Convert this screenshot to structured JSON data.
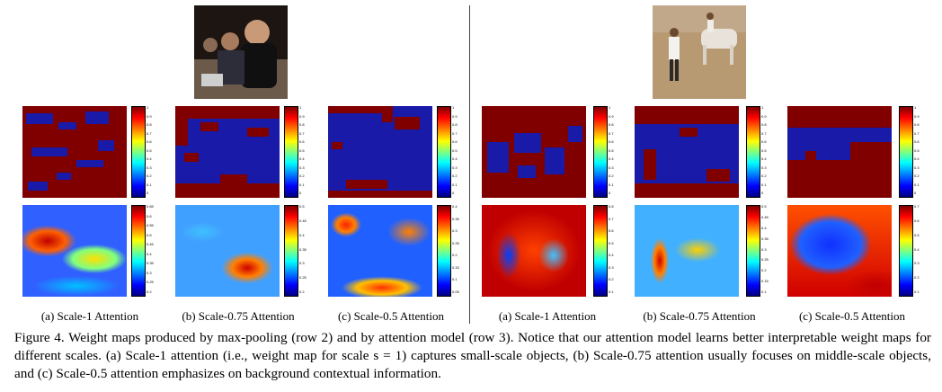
{
  "figure": {
    "number_label": "Figure 4.",
    "caption_text": "Weight maps produced by max-pooling (row 2) and by attention model (row 3). Notice that our attention model learns better interpretable weight maps for different scales. (a) Scale-1 attention (i.e., weight map for scale s = 1) captures small-scale objects, (b) Scale-0.75 attention usually focuses on middle-scale objects, and (c) Scale-0.5 attention emphasizes on background contextual information."
  },
  "panels": {
    "left": {
      "photo_description_icon": "people-photo",
      "sublabels": [
        "(a) Scale-1 Attention",
        "(b) Scale-0.75 Attention",
        "(c) Scale-0.5 Attention"
      ],
      "row2_ticks": [
        [
          "1",
          "0.9",
          "0.8",
          "0.7",
          "0.6",
          "0.5",
          "0.4",
          "0.3",
          "0.2",
          "0.1",
          "0"
        ],
        [
          "1",
          "0.9",
          "0.8",
          "0.7",
          "0.6",
          "0.5",
          "0.4",
          "0.3",
          "0.2",
          "0.1",
          "0"
        ],
        [
          "1",
          "0.9",
          "0.8",
          "0.7",
          "0.6",
          "0.5",
          "0.4",
          "0.3",
          "0.2",
          "0.1",
          "0"
        ]
      ],
      "row3_ticks": [
        [
          "0.65",
          "0.6",
          "0.55",
          "0.5",
          "0.45",
          "0.4",
          "0.35",
          "0.3",
          "0.25",
          "0.2"
        ],
        [
          "0.5",
          "0.45",
          "0.4",
          "0.35",
          "0.3",
          "0.25",
          "0.2"
        ],
        [
          "0.4",
          "0.35",
          "0.3",
          "0.25",
          "0.2",
          "0.15",
          "0.1",
          "0.05"
        ]
      ]
    },
    "right": {
      "photo_description_icon": "horse-beach-photo",
      "sublabels": [
        "(a) Scale-1 Attention",
        "(b) Scale-0.75 Attention",
        "(c) Scale-0.5 Attention"
      ],
      "row2_ticks": [
        [
          "1",
          "0.9",
          "0.8",
          "0.7",
          "0.6",
          "0.5",
          "0.4",
          "0.3",
          "0.2",
          "0.1",
          "0"
        ],
        [
          "1",
          "0.9",
          "0.8",
          "0.7",
          "0.6",
          "0.5",
          "0.4",
          "0.3",
          "0.2",
          "0.1",
          "0"
        ],
        [
          "1",
          "0.9",
          "0.8",
          "0.7",
          "0.6",
          "0.5",
          "0.4",
          "0.3",
          "0.2",
          "0.1",
          "0"
        ]
      ],
      "row3_ticks": [
        [
          "0.8",
          "0.7",
          "0.6",
          "0.5",
          "0.4",
          "0.3",
          "0.2",
          "0.1"
        ],
        [
          "0.5",
          "0.45",
          "0.4",
          "0.35",
          "0.3",
          "0.25",
          "0.2",
          "0.15",
          "0.1"
        ],
        [
          "0.7",
          "0.6",
          "0.5",
          "0.4",
          "0.3",
          "0.2",
          "0.1"
        ]
      ]
    }
  },
  "colors": {
    "dark_red": "#800000",
    "dark_blue": "#1a1aa8",
    "jet_blue": "#0040ff"
  }
}
